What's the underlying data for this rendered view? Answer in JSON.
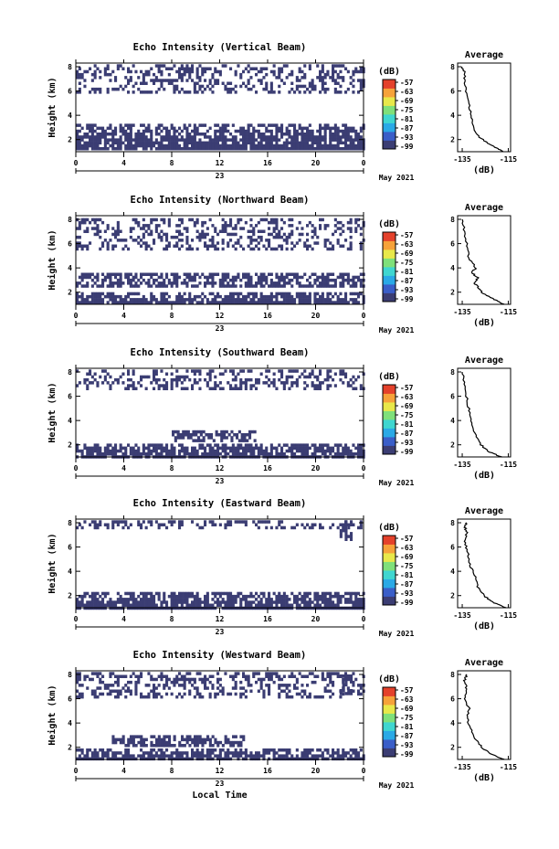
{
  "chart_data": [
    {
      "type": "heatmap",
      "title": "Echo Intensity (Vertical Beam)",
      "ylabel": "Height (km)",
      "x_ticks": [
        "0",
        "4",
        "8",
        "12",
        "16",
        "20",
        "0"
      ],
      "day_label": "23",
      "month_label": "May 2021",
      "y_ticks": [
        "2",
        "4",
        "6",
        "8"
      ],
      "ylim": [
        1,
        8.3
      ],
      "colorbar": {
        "unit": "(dB)",
        "ticks": [
          "-57",
          "-63",
          "-69",
          "-75",
          "-81",
          "-87",
          "-93",
          "-99"
        ]
      },
      "bands": [
        {
          "from_hour": 0,
          "to_hour": 24,
          "bottom_km": 1.2,
          "top_km": 3.3
        },
        {
          "from_hour": 0,
          "to_hour": 24,
          "bottom_km": 5.8,
          "top_km": 8.2,
          "density": "sparse"
        }
      ],
      "profile": {
        "title": "Average",
        "xlabel": "(dB)",
        "x_ticks": [
          "-135",
          "-115"
        ],
        "y_ticks": [
          "2",
          "4",
          "6",
          "8"
        ],
        "x": [
          -117,
          -120,
          -124,
          -128,
          -130,
          -131,
          -132,
          -133,
          -134,
          -134,
          -135
        ],
        "y": [
          1.0,
          1.3,
          1.7,
          2.3,
          3.0,
          3.8,
          4.8,
          5.8,
          6.8,
          7.6,
          8.0
        ]
      }
    },
    {
      "type": "heatmap",
      "title": "Echo Intensity (Northward Beam)",
      "ylabel": "Height (km)",
      "x_ticks": [
        "0",
        "4",
        "8",
        "12",
        "16",
        "20",
        "0"
      ],
      "day_label": "23",
      "month_label": "May 2021",
      "y_ticks": [
        "2",
        "4",
        "6",
        "8"
      ],
      "ylim": [
        1,
        8.3
      ],
      "colorbar": {
        "unit": "(dB)",
        "ticks": [
          "-57",
          "-63",
          "-69",
          "-75",
          "-81",
          "-87",
          "-93",
          "-99"
        ]
      },
      "bands": [
        {
          "from_hour": 0,
          "to_hour": 24,
          "bottom_km": 1.1,
          "top_km": 2.0
        },
        {
          "from_hour": 0,
          "to_hour": 24,
          "bottom_km": 2.4,
          "top_km": 3.6,
          "density": "medium"
        },
        {
          "from_hour": 0,
          "to_hour": 24,
          "bottom_km": 5.5,
          "top_km": 8.1,
          "density": "sparse"
        }
      ],
      "profile": {
        "title": "Average",
        "xlabel": "(dB)",
        "x_ticks": [
          "-135",
          "-115"
        ],
        "y_ticks": [
          "2",
          "4",
          "6",
          "8"
        ],
        "x": [
          -117,
          -121,
          -126,
          -128,
          -130,
          -128,
          -131,
          -129,
          -132,
          -133,
          -134,
          -135
        ],
        "y": [
          1.0,
          1.4,
          1.9,
          2.4,
          2.8,
          3.2,
          3.6,
          4.0,
          4.8,
          5.8,
          7.0,
          8.0
        ]
      }
    },
    {
      "type": "heatmap",
      "title": "Echo Intensity (Southward Beam)",
      "ylabel": "Height (km)",
      "x_ticks": [
        "0",
        "4",
        "8",
        "12",
        "16",
        "20",
        "0"
      ],
      "day_label": "23",
      "month_label": "May 2021",
      "y_ticks": [
        "2",
        "4",
        "6",
        "8"
      ],
      "ylim": [
        1,
        8.3
      ],
      "colorbar": {
        "unit": "(dB)",
        "ticks": [
          "-57",
          "-63",
          "-69",
          "-75",
          "-81",
          "-87",
          "-93",
          "-99"
        ]
      },
      "bands": [
        {
          "from_hour": 0,
          "to_hour": 24,
          "bottom_km": 1.0,
          "top_km": 2.1
        },
        {
          "from_hour": 8,
          "to_hour": 15,
          "bottom_km": 2.3,
          "top_km": 3.2,
          "density": "medium"
        },
        {
          "from_hour": 0,
          "to_hour": 24,
          "bottom_km": 6.5,
          "top_km": 8.2,
          "density": "sparse"
        }
      ],
      "profile": {
        "title": "Average",
        "xlabel": "(dB)",
        "x_ticks": [
          "-135",
          "-115"
        ],
        "y_ticks": [
          "2",
          "4",
          "6",
          "8"
        ],
        "x": [
          -118,
          -123,
          -127,
          -129,
          -131,
          -132,
          -133,
          -134,
          -135
        ],
        "y": [
          1.0,
          1.4,
          2.0,
          2.8,
          3.8,
          4.8,
          5.8,
          7.0,
          8.0
        ]
      }
    },
    {
      "type": "heatmap",
      "title": "Echo Intensity (Eastward Beam)",
      "ylabel": "Height (km)",
      "x_ticks": [
        "0",
        "4",
        "8",
        "12",
        "16",
        "20",
        "0"
      ],
      "day_label": "23",
      "month_label": "May 2021",
      "y_ticks": [
        "2",
        "4",
        "6",
        "8"
      ],
      "ylim": [
        1,
        8.3
      ],
      "colorbar": {
        "unit": "(dB)",
        "ticks": [
          "-57",
          "-63",
          "-69",
          "-75",
          "-81",
          "-87",
          "-93",
          "-99"
        ]
      },
      "bands": [
        {
          "from_hour": 0,
          "to_hour": 24,
          "bottom_km": 1.0,
          "top_km": 2.3
        },
        {
          "from_hour": 22,
          "to_hour": 23,
          "bottom_km": 6.5,
          "top_km": 8.2,
          "density": "medium"
        },
        {
          "from_hour": 0,
          "to_hour": 24,
          "bottom_km": 7.6,
          "top_km": 8.2,
          "density": "sparse"
        }
      ],
      "profile": {
        "title": "Average",
        "xlabel": "(dB)",
        "x_ticks": [
          "-135",
          "-115"
        ],
        "y_ticks": [
          "2",
          "4",
          "6",
          "8"
        ],
        "x": [
          -116,
          -121,
          -125,
          -128,
          -129,
          -131,
          -132,
          -133,
          -134,
          -133,
          -134,
          -133
        ],
        "y": [
          1.0,
          1.4,
          1.9,
          2.6,
          3.4,
          4.2,
          5.0,
          5.8,
          6.6,
          7.2,
          7.7,
          8.0
        ]
      }
    },
    {
      "type": "heatmap",
      "title": "Echo Intensity (Westward Beam)",
      "ylabel": "Height (km)",
      "xlabel": "Local Time",
      "x_ticks": [
        "0",
        "4",
        "8",
        "12",
        "16",
        "20",
        "0"
      ],
      "day_label": "23",
      "month_label": "May 2021",
      "y_ticks": [
        "2",
        "4",
        "6",
        "8"
      ],
      "ylim": [
        1,
        8.3
      ],
      "colorbar": {
        "unit": "(dB)",
        "ticks": [
          "-57",
          "-63",
          "-69",
          "-75",
          "-81",
          "-87",
          "-93",
          "-99"
        ]
      },
      "bands": [
        {
          "from_hour": 0,
          "to_hour": 24,
          "bottom_km": 1.0,
          "top_km": 1.9
        },
        {
          "from_hour": 3,
          "to_hour": 14,
          "bottom_km": 2.2,
          "top_km": 3.0,
          "density": "medium"
        },
        {
          "from_hour": 22,
          "to_hour": 23,
          "bottom_km": 6.5,
          "top_km": 8.0,
          "density": "medium"
        },
        {
          "from_hour": 0,
          "to_hour": 24,
          "bottom_km": 6.0,
          "top_km": 8.2,
          "density": "sparse"
        }
      ],
      "profile": {
        "title": "Average",
        "xlabel": "(dB)",
        "x_ticks": [
          "-135",
          "-115"
        ],
        "y_ticks": [
          "2",
          "4",
          "6",
          "8"
        ],
        "x": [
          -117,
          -122,
          -126,
          -129,
          -131,
          -133,
          -132,
          -134,
          -133,
          -134,
          -133
        ],
        "y": [
          1.0,
          1.4,
          1.9,
          2.6,
          3.4,
          4.4,
          5.2,
          6.0,
          6.8,
          7.5,
          8.0
        ]
      }
    }
  ],
  "colors": {
    "fill": "#3b3d73",
    "colorbar": [
      "#3b3d73",
      "#3a5ec8",
      "#2aa9e6",
      "#3fd6d0",
      "#7fe07a",
      "#e8e84a",
      "#f6a23a",
      "#e4412b"
    ]
  }
}
